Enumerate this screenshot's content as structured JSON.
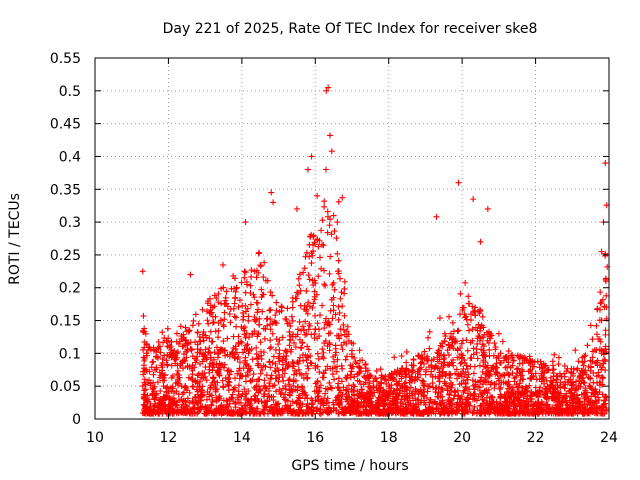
{
  "chart_data": {
    "type": "scatter",
    "title": "Day 221 of 2025, Rate Of TEC Index for receiver ske8",
    "xlabel": "GPS time / hours",
    "ylabel": "ROTI / TECUs",
    "xlim": [
      10,
      24
    ],
    "ylim": [
      0,
      0.55
    ],
    "xticks": [
      10,
      12,
      14,
      16,
      18,
      20,
      22,
      24
    ],
    "xtick_labels": [
      "10",
      "12",
      "14",
      "16",
      "18",
      "20",
      "22",
      "24"
    ],
    "yticks": [
      0,
      0.05,
      0.1,
      0.15,
      0.2,
      0.25,
      0.3,
      0.35,
      0.4,
      0.45,
      0.5,
      0.55
    ],
    "ytick_labels": [
      "0",
      "0.05",
      "0.1",
      "0.15",
      "0.2",
      "0.25",
      "0.3",
      "0.35",
      "0.4",
      "0.45",
      "0.5",
      "0.55"
    ],
    "grid": true,
    "marker": "+",
    "color": "#ff0000",
    "envelope_x": [
      11.3,
      11.5,
      12.0,
      12.5,
      13.0,
      13.5,
      14.0,
      14.5,
      15.0,
      15.5,
      16.0,
      16.3,
      16.5,
      16.8,
      17.0,
      17.5,
      18.0,
      18.5,
      19.0,
      19.5,
      20.0,
      20.3,
      20.6,
      21.0,
      21.5,
      22.0,
      22.5,
      23.0,
      23.5,
      23.8,
      23.95
    ],
    "envelope_y": [
      0.14,
      0.1,
      0.12,
      0.14,
      0.17,
      0.2,
      0.22,
      0.25,
      0.16,
      0.2,
      0.3,
      0.32,
      0.3,
      0.22,
      0.1,
      0.07,
      0.06,
      0.08,
      0.1,
      0.12,
      0.16,
      0.2,
      0.14,
      0.1,
      0.09,
      0.08,
      0.08,
      0.07,
      0.1,
      0.2,
      0.28
    ],
    "outliers": [
      [
        11.3,
        0.225
      ],
      [
        12.6,
        0.22
      ],
      [
        14.1,
        0.3
      ],
      [
        14.8,
        0.345
      ],
      [
        14.85,
        0.33
      ],
      [
        15.5,
        0.32
      ],
      [
        15.8,
        0.38
      ],
      [
        15.9,
        0.4
      ],
      [
        16.05,
        0.34
      ],
      [
        16.3,
        0.5
      ],
      [
        16.35,
        0.505
      ],
      [
        16.4,
        0.432
      ],
      [
        16.45,
        0.408
      ],
      [
        16.5,
        0.31
      ],
      [
        16.6,
        0.3
      ],
      [
        19.3,
        0.308
      ],
      [
        19.9,
        0.36
      ],
      [
        20.3,
        0.335
      ],
      [
        20.7,
        0.32
      ],
      [
        20.5,
        0.27
      ],
      [
        21.0,
        0.13
      ],
      [
        23.9,
        0.39
      ],
      [
        23.85,
        0.3
      ],
      [
        23.8,
        0.255
      ]
    ]
  }
}
